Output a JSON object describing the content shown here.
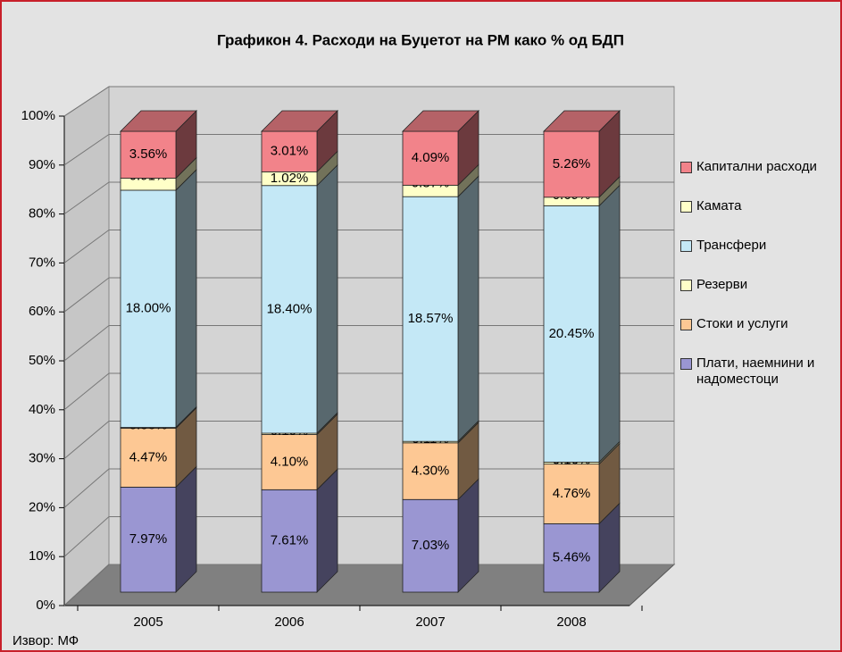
{
  "chart_data": {
    "type": "bar",
    "stacking": "percent",
    "title": "Графикон 4. Расходи на Буџетот на РМ како % од БДП",
    "source": "Извор: МФ",
    "categories": [
      "2005",
      "2006",
      "2007",
      "2008"
    ],
    "series": [
      {
        "name": "Плати, наемнини и надоместоци",
        "color": "#9a96d2",
        "values": [
          7.97,
          7.61,
          7.03,
          5.46
        ],
        "value_labels": [
          "7.97%",
          "7.61%",
          "7.03%",
          "5.46%"
        ]
      },
      {
        "name": "Стоки и услуги",
        "color": "#fdc894",
        "values": [
          4.47,
          4.1,
          4.3,
          4.76
        ],
        "value_labels": [
          "4.47%",
          "4.10%",
          "4.30%",
          "4.76%"
        ]
      },
      {
        "name": "Резерви",
        "color": "#ffffc8",
        "values": [
          0.06,
          0.1,
          0.11,
          0.16
        ],
        "value_labels": [
          "0.06%",
          "0.10%",
          "0.11%",
          "0.16%"
        ]
      },
      {
        "name": "Трансфери",
        "color": "#c4e8f6",
        "values": [
          18.0,
          18.4,
          18.57,
          20.45
        ],
        "value_labels": [
          "18.00%",
          "18.40%",
          "18.57%",
          "20.45%"
        ]
      },
      {
        "name": "Камата",
        "color": "#ffffc8",
        "values": [
          0.91,
          1.02,
          0.87,
          0.69
        ],
        "value_labels": [
          "0.91%",
          "1.02%",
          "0.87%",
          "0.69%"
        ]
      },
      {
        "name": "Капитални расходи",
        "color": "#f2838a",
        "values": [
          3.56,
          3.01,
          4.09,
          5.26
        ],
        "value_labels": [
          "3.56%",
          "3.01%",
          "4.09%",
          "5.26%"
        ]
      }
    ],
    "ylim": [
      0,
      100
    ],
    "yticks": [
      {
        "value": 0,
        "label": "0%"
      },
      {
        "value": 10,
        "label": "10%"
      },
      {
        "value": 20,
        "label": "20%"
      },
      {
        "value": 30,
        "label": "30%"
      },
      {
        "value": 40,
        "label": "40%"
      },
      {
        "value": 50,
        "label": "50%"
      },
      {
        "value": 60,
        "label": "60%"
      },
      {
        "value": 70,
        "label": "70%"
      },
      {
        "value": 80,
        "label": "80%"
      },
      {
        "value": 90,
        "label": "90%"
      },
      {
        "value": 100,
        "label": "100%"
      }
    ],
    "grid": true,
    "legend": "right"
  }
}
